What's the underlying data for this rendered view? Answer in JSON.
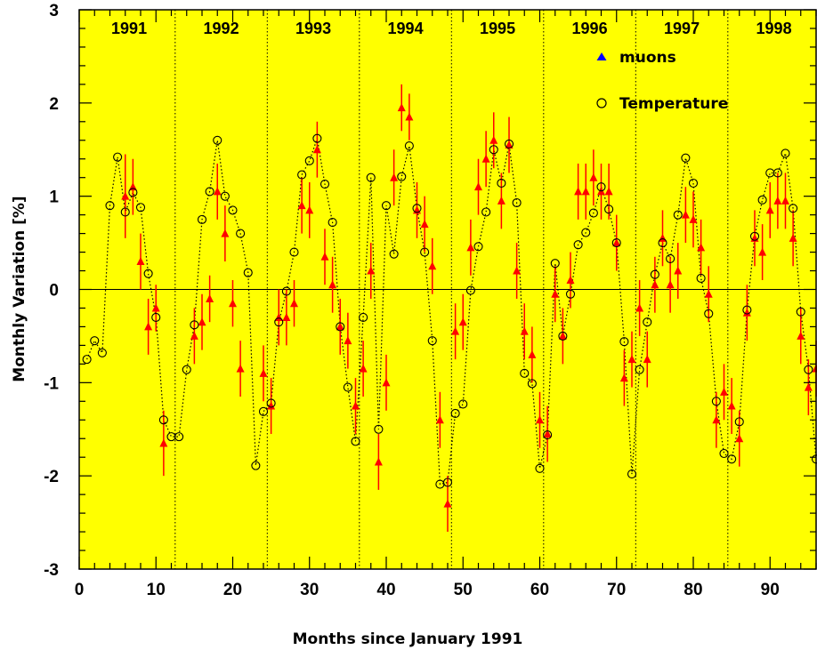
{
  "chart_data": {
    "type": "scatter",
    "xlabel": "Months since January 1991",
    "ylabel": "Monthly Variation [%]",
    "xlim": [
      0,
      96
    ],
    "ylim": [
      -3,
      3
    ],
    "x_ticks": [
      "0",
      "10",
      "20",
      "30",
      "40",
      "50",
      "60",
      "70",
      "80",
      "90"
    ],
    "y_ticks": [
      "-3",
      "-2",
      "-1",
      "0",
      "1",
      "2",
      "3"
    ],
    "year_boundaries": [
      12.5,
      24.5,
      36.5,
      48.5,
      60.5,
      72.5,
      84.5
    ],
    "years": [
      {
        "label": "1991",
        "x": 6.5
      },
      {
        "label": "1992",
        "x": 18.5
      },
      {
        "label": "1993",
        "x": 30.5
      },
      {
        "label": "1994",
        "x": 42.5
      },
      {
        "label": "1995",
        "x": 54.5
      },
      {
        "label": "1996",
        "x": 66.5
      },
      {
        "label": "1997",
        "x": 78.5
      },
      {
        "label": "1998",
        "x": 90.5
      }
    ],
    "grid": false,
    "legend_position": "top-right",
    "colors": {
      "background": "#ffff00",
      "muons": "#ff0000",
      "legend_muon_marker": "#0000ff",
      "temperature": "#000000"
    },
    "series": [
      {
        "name": "muons",
        "marker": "triangle",
        "x": [
          6,
          7,
          8,
          9,
          10,
          11,
          15,
          16,
          17,
          18,
          19,
          20,
          21,
          24,
          25,
          26,
          27,
          28,
          29,
          30,
          31,
          32,
          33,
          34,
          35,
          36,
          37,
          38,
          39,
          40,
          41,
          42,
          43,
          44,
          45,
          46,
          47,
          48,
          49,
          50,
          51,
          52,
          53,
          54,
          55,
          56,
          57,
          58,
          59,
          60,
          61,
          62,
          63,
          64,
          65,
          66,
          67,
          68,
          69,
          70,
          71,
          72,
          73,
          74,
          75,
          76,
          77,
          78,
          79,
          80,
          81,
          82,
          83,
          84,
          85,
          86,
          87,
          88,
          89,
          90,
          91,
          92,
          93,
          94,
          95,
          96
        ],
        "values": [
          1.0,
          1.1,
          0.3,
          -0.4,
          -0.2,
          -1.65,
          -0.5,
          -0.35,
          -0.1,
          1.05,
          0.6,
          -0.15,
          -0.85,
          -0.9,
          -1.25,
          -0.3,
          -0.3,
          -0.15,
          0.9,
          0.85,
          1.5,
          0.35,
          0.05,
          -0.4,
          -0.55,
          -1.25,
          -0.85,
          0.2,
          -1.85,
          -1.0,
          1.2,
          1.95,
          1.85,
          0.85,
          0.7,
          0.25,
          -1.4,
          -2.3,
          -0.45,
          -0.35,
          0.45,
          1.1,
          1.4,
          1.6,
          0.95,
          1.55,
          0.2,
          -0.45,
          -0.7,
          -1.4,
          -1.55,
          -0.05,
          -0.5,
          0.1,
          1.05,
          1.05,
          1.2,
          1.05,
          1.05,
          0.5,
          -0.95,
          -0.75,
          -0.2,
          -0.75,
          0.05,
          0.55,
          0.05,
          0.2,
          0.8,
          0.75,
          0.45,
          -0.05,
          -1.4,
          -1.1,
          -1.25,
          -1.6,
          -0.25,
          0.55,
          0.4,
          0.85,
          0.95,
          0.95,
          0.55,
          -0.5,
          -1.05,
          -0.85
        ],
        "errors": [
          0.45,
          0.3,
          0.3,
          0.3,
          0.25,
          0.35,
          0.3,
          0.3,
          0.25,
          0.3,
          0.3,
          0.25,
          0.3,
          0.3,
          0.3,
          0.3,
          0.3,
          0.25,
          0.3,
          0.3,
          0.3,
          0.3,
          0.3,
          0.3,
          0.3,
          0.3,
          0.3,
          0.3,
          0.3,
          0.3,
          0.3,
          0.25,
          0.25,
          0.3,
          0.3,
          0.3,
          0.3,
          0.3,
          0.3,
          0.3,
          0.3,
          0.3,
          0.3,
          0.3,
          0.3,
          0.3,
          0.3,
          0.3,
          0.3,
          0.3,
          0.3,
          0.3,
          0.3,
          0.3,
          0.3,
          0.3,
          0.3,
          0.3,
          0.3,
          0.3,
          0.3,
          0.3,
          0.3,
          0.3,
          0.3,
          0.3,
          0.3,
          0.3,
          0.3,
          0.3,
          0.3,
          0.3,
          0.3,
          0.3,
          0.3,
          0.3,
          0.3,
          0.3,
          0.3,
          0.3,
          0.3,
          0.3,
          0.3,
          0.3,
          0.3,
          0.3
        ]
      },
      {
        "name": "Temperature",
        "marker": "circle",
        "x": [
          1,
          2,
          3,
          4,
          5,
          6,
          7,
          8,
          9,
          10,
          11,
          12,
          13,
          14,
          15,
          16,
          17,
          18,
          19,
          20,
          21,
          22,
          23,
          24,
          25,
          26,
          27,
          28,
          29,
          30,
          31,
          32,
          33,
          34,
          35,
          36,
          37,
          38,
          39,
          40,
          41,
          42,
          43,
          44,
          45,
          46,
          47,
          48,
          49,
          50,
          51,
          52,
          53,
          54,
          55,
          56,
          57,
          58,
          59,
          60,
          61,
          62,
          63,
          64,
          65,
          66,
          67,
          68,
          69,
          70,
          71,
          72,
          73,
          74,
          75,
          76,
          77,
          78,
          79,
          80,
          81,
          82,
          83,
          84,
          85,
          86,
          87,
          88,
          89,
          90,
          91,
          92,
          93,
          94,
          95,
          96
        ],
        "values": [
          -0.75,
          -0.55,
          -0.68,
          0.9,
          1.42,
          0.83,
          1.04,
          0.88,
          0.17,
          -0.3,
          -1.4,
          -1.58,
          -1.58,
          -0.86,
          -0.38,
          0.75,
          1.05,
          1.6,
          1.0,
          0.85,
          0.6,
          0.18,
          -1.89,
          -1.31,
          -1.22,
          -0.35,
          -0.02,
          0.4,
          1.23,
          1.38,
          1.62,
          1.13,
          0.72,
          -0.4,
          -1.05,
          -1.63,
          -0.3,
          1.2,
          -1.5,
          0.9,
          0.38,
          1.21,
          1.54,
          0.87,
          0.4,
          -0.55,
          -2.09,
          -2.07,
          -1.33,
          -1.23,
          -0.01,
          0.46,
          0.83,
          1.5,
          1.14,
          1.56,
          0.93,
          -0.9,
          -1.01,
          -1.92,
          -1.56,
          0.28,
          -0.5,
          -0.05,
          0.48,
          0.61,
          0.82,
          1.1,
          0.86,
          0.5,
          -0.56,
          -1.98,
          -0.86,
          -0.35,
          0.16,
          0.5,
          0.33,
          0.8,
          1.41,
          1.14,
          0.12,
          -0.26,
          -1.2,
          -1.76,
          -1.82,
          -1.42,
          -0.22,
          0.57,
          0.96,
          1.25,
          1.25,
          1.46,
          0.87,
          -0.24,
          -0.86,
          -1.82
        ]
      }
    ]
  }
}
